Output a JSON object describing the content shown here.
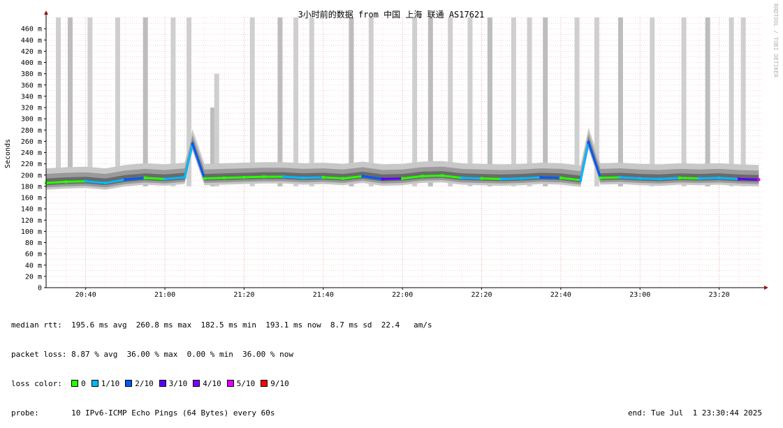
{
  "chart_data": {
    "type": "line",
    "title": "3小时前的数据 from 中国 上海 联通 AS17621",
    "ylabel": "Seconds",
    "xlabel": "",
    "ylim": [
      0,
      480
    ],
    "y_unit": "ms",
    "y_ticks": [
      {
        "value": 0,
        "label": "0"
      },
      {
        "value": 20,
        "label": "20 m"
      },
      {
        "value": 40,
        "label": "40 m"
      },
      {
        "value": 60,
        "label": "60 m"
      },
      {
        "value": 80,
        "label": "80 m"
      },
      {
        "value": 100,
        "label": "100 m"
      },
      {
        "value": 120,
        "label": "120 m"
      },
      {
        "value": 140,
        "label": "140 m"
      },
      {
        "value": 160,
        "label": "160 m"
      },
      {
        "value": 180,
        "label": "180 m"
      },
      {
        "value": 200,
        "label": "200 m"
      },
      {
        "value": 220,
        "label": "220 m"
      },
      {
        "value": 240,
        "label": "240 m"
      },
      {
        "value": 260,
        "label": "260 m"
      },
      {
        "value": 280,
        "label": "280 m"
      },
      {
        "value": 300,
        "label": "300 m"
      },
      {
        "value": 320,
        "label": "320 m"
      },
      {
        "value": 340,
        "label": "340 m"
      },
      {
        "value": 360,
        "label": "360 m"
      },
      {
        "value": 380,
        "label": "380 m"
      },
      {
        "value": 400,
        "label": "400 m"
      },
      {
        "value": 420,
        "label": "420 m"
      },
      {
        "value": 440,
        "label": "440 m"
      },
      {
        "value": 460,
        "label": "460 m"
      }
    ],
    "xlim": [
      "20:30",
      "23:31"
    ],
    "x_ticks": [
      "20:40",
      "21:00",
      "21:20",
      "21:40",
      "22:00",
      "22:20",
      "22:40",
      "23:00",
      "23:20"
    ],
    "grid": true,
    "series": [
      {
        "name": "median rtt",
        "x": [
          "20:30",
          "20:35",
          "20:40",
          "20:45",
          "20:50",
          "20:55",
          "21:00",
          "21:05",
          "21:07",
          "21:10",
          "21:15",
          "21:20",
          "21:25",
          "21:30",
          "21:35",
          "21:40",
          "21:45",
          "21:50",
          "21:55",
          "22:00",
          "22:05",
          "22:10",
          "22:15",
          "22:20",
          "22:25",
          "22:30",
          "22:35",
          "22:40",
          "22:45",
          "22:47",
          "22:50",
          "22:55",
          "23:00",
          "23:05",
          "23:10",
          "23:15",
          "23:20",
          "23:25",
          "23:30"
        ],
        "values": [
          186,
          188,
          189,
          186,
          192,
          195,
          193,
          196,
          255,
          194,
          195,
          196,
          197,
          197,
          195,
          196,
          194,
          198,
          193,
          194,
          198,
          199,
          195,
          194,
          193,
          194,
          196,
          195,
          191,
          258,
          195,
          196,
          194,
          193,
          195,
          194,
          195,
          193,
          192
        ],
        "loss": [
          "0",
          "0",
          "1/10",
          "1/10",
          "2/10",
          "0",
          "1/10",
          "1/10",
          "2/10",
          "0",
          "0",
          "0",
          "0",
          "1/10",
          "1/10",
          "0",
          "0",
          "2/10",
          "3/10",
          "0",
          "0",
          "0",
          "1/10",
          "0",
          "1/10",
          "1/10",
          "2/10",
          "0",
          "1/10",
          "2/10",
          "0",
          "1/10",
          "1/10",
          "1/10",
          "0",
          "1/10",
          "1/10",
          "3/10",
          "5/10"
        ]
      }
    ],
    "spikes_ms": [
      {
        "x": "20:33",
        "value": 480
      },
      {
        "x": "20:36",
        "value": 480
      },
      {
        "x": "20:41",
        "value": 480
      },
      {
        "x": "20:48",
        "value": 480
      },
      {
        "x": "20:55",
        "value": 480
      },
      {
        "x": "21:02",
        "value": 480
      },
      {
        "x": "21:06",
        "value": 480
      },
      {
        "x": "21:12",
        "value": 320
      },
      {
        "x": "21:13",
        "value": 380
      },
      {
        "x": "21:22",
        "value": 480
      },
      {
        "x": "21:29",
        "value": 480
      },
      {
        "x": "21:33",
        "value": 480
      },
      {
        "x": "21:37",
        "value": 480
      },
      {
        "x": "21:47",
        "value": 480
      },
      {
        "x": "21:52",
        "value": 480
      },
      {
        "x": "22:03",
        "value": 480
      },
      {
        "x": "22:07",
        "value": 480
      },
      {
        "x": "22:12",
        "value": 480
      },
      {
        "x": "22:17",
        "value": 480
      },
      {
        "x": "22:22",
        "value": 480
      },
      {
        "x": "22:28",
        "value": 480
      },
      {
        "x": "22:32",
        "value": 480
      },
      {
        "x": "22:36",
        "value": 480
      },
      {
        "x": "22:44",
        "value": 480
      },
      {
        "x": "22:49",
        "value": 480
      },
      {
        "x": "22:55",
        "value": 480
      },
      {
        "x": "23:03",
        "value": 480
      },
      {
        "x": "23:11",
        "value": 480
      },
      {
        "x": "23:17",
        "value": 480
      },
      {
        "x": "23:23",
        "value": 480
      },
      {
        "x": "23:26",
        "value": 480
      }
    ]
  },
  "watermark": "RRDTOOL / TOBI OETIKER",
  "stats": {
    "median_rtt": "median rtt:  195.6 ms avg  260.8 ms max  182.5 ms min  193.1 ms now  8.7 ms sd  22.4   am/s",
    "packet_loss": "packet loss: 8.87 % avg  36.00 % max  0.00 % min  36.00 % now",
    "loss_color_label": "loss color:",
    "loss_colors": [
      {
        "label": "0",
        "color": "#26ff00"
      },
      {
        "label": "1/10",
        "color": "#00b8ff"
      },
      {
        "label": "2/10",
        "color": "#0059ff"
      },
      {
        "label": "3/10",
        "color": "#5e00ff"
      },
      {
        "label": "4/10",
        "color": "#7e00ff"
      },
      {
        "label": "5/10",
        "color": "#dd00ff"
      },
      {
        "label": "9/10",
        "color": "#ff0000"
      }
    ],
    "probe_label": "probe:",
    "probe_value": "10 IPv6-ICMP Echo Pings (64 Bytes) every 60s",
    "end_text": "end: Tue Jul  1 23:30:44 2025"
  }
}
